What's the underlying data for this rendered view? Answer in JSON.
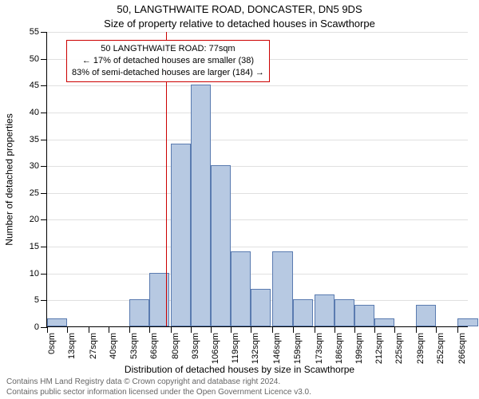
{
  "title": "50, LANGTHWAITE ROAD, DONCASTER, DN5 9DS",
  "subtitle": "Size of property relative to detached houses in Scawthorpe",
  "ylabel": "Number of detached properties",
  "xlabel": "Distribution of detached houses by size in Scawthorpe",
  "attribution_line1": "Contains HM Land Registry data © Crown copyright and database right 2024.",
  "attribution_line2": "Contains public sector information licensed under the Open Government Licence v3.0.",
  "chart": {
    "type": "histogram",
    "bar_fill": "#b7c9e2",
    "bar_stroke": "#5a7bb0",
    "grid_color": "#e0e0e0",
    "refline_color": "#cc0000",
    "annotation_border": "#cc0000",
    "ylim": [
      0,
      55
    ],
    "ytick_step": 5,
    "xlim": [
      0,
      273
    ],
    "bin_width": 13,
    "xticks": [
      0,
      13,
      27,
      40,
      53,
      66,
      80,
      93,
      106,
      119,
      132,
      146,
      159,
      173,
      186,
      199,
      212,
      225,
      239,
      252,
      266
    ],
    "xtick_labels": [
      "0sqm",
      "13sqm",
      "27sqm",
      "40sqm",
      "53sqm",
      "66sqm",
      "80sqm",
      "93sqm",
      "106sqm",
      "119sqm",
      "132sqm",
      "146sqm",
      "159sqm",
      "173sqm",
      "186sqm",
      "199sqm",
      "212sqm",
      "225sqm",
      "239sqm",
      "252sqm",
      "266sqm"
    ],
    "values": [
      1.5,
      0,
      0,
      0,
      5,
      10,
      34,
      45,
      30,
      14,
      7,
      14,
      5,
      6,
      5,
      4,
      1.5,
      0,
      4,
      0,
      1.5
    ],
    "refline_x": 77,
    "annotation": {
      "line1": "50 LANGTHWAITE ROAD: 77sqm",
      "line2": "← 17% of detached houses are smaller (38)",
      "line3": "83% of semi-detached houses are larger (184) →"
    }
  }
}
